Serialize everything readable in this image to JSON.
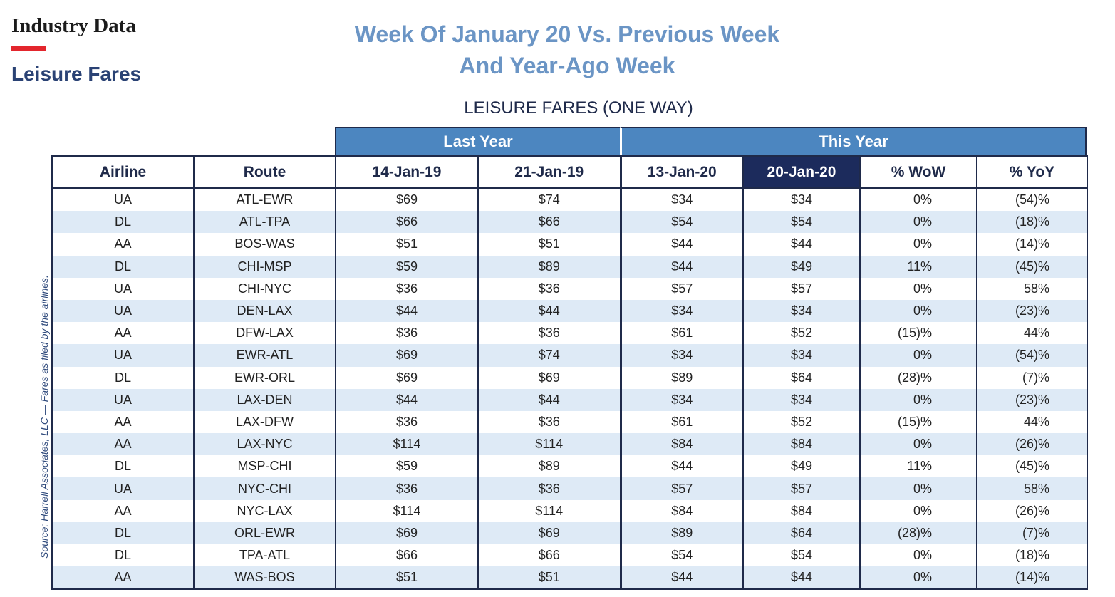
{
  "header": {
    "section": "Industry Data",
    "topic": "Leisure Fares",
    "headline_line1": "Week Of January 20 Vs. Previous Week",
    "headline_line2": "And Year-Ago Week",
    "accent_red": "#e3262d",
    "headline_color": "#6b95c5"
  },
  "table": {
    "title": "LEISURE FARES (ONE WAY)",
    "groups": {
      "last_year": "Last Year",
      "this_year": "This Year"
    },
    "group_color": "#4c86c0",
    "highlight_color": "#1c2b5c",
    "stripe_color": "#deeaf6",
    "columns": [
      "Airline",
      "Route",
      "14-Jan-19",
      "21-Jan-19",
      "13-Jan-20",
      "20-Jan-20",
      "% WoW",
      "% YoY"
    ],
    "rows": [
      [
        "UA",
        "ATL-EWR",
        "$69",
        "$74",
        "$34",
        "$34",
        "0%",
        "(54)%"
      ],
      [
        "DL",
        "ATL-TPA",
        "$66",
        "$66",
        "$54",
        "$54",
        "0%",
        "(18)%"
      ],
      [
        "AA",
        "BOS-WAS",
        "$51",
        "$51",
        "$44",
        "$44",
        "0%",
        "(14)%"
      ],
      [
        "DL",
        "CHI-MSP",
        "$59",
        "$89",
        "$44",
        "$49",
        "11%",
        "(45)%"
      ],
      [
        "UA",
        "CHI-NYC",
        "$36",
        "$36",
        "$57",
        "$57",
        "0%",
        "58%"
      ],
      [
        "UA",
        "DEN-LAX",
        "$44",
        "$44",
        "$34",
        "$34",
        "0%",
        "(23)%"
      ],
      [
        "AA",
        "DFW-LAX",
        "$36",
        "$36",
        "$61",
        "$52",
        "(15)%",
        "44%"
      ],
      [
        "UA",
        "EWR-ATL",
        "$69",
        "$74",
        "$34",
        "$34",
        "0%",
        "(54)%"
      ],
      [
        "DL",
        "EWR-ORL",
        "$69",
        "$69",
        "$89",
        "$64",
        "(28)%",
        "(7)%"
      ],
      [
        "UA",
        "LAX-DEN",
        "$44",
        "$44",
        "$34",
        "$34",
        "0%",
        "(23)%"
      ],
      [
        "AA",
        "LAX-DFW",
        "$36",
        "$36",
        "$61",
        "$52",
        "(15)%",
        "44%"
      ],
      [
        "AA",
        "LAX-NYC",
        "$114",
        "$114",
        "$84",
        "$84",
        "0%",
        "(26)%"
      ],
      [
        "DL",
        "MSP-CHI",
        "$59",
        "$89",
        "$44",
        "$49",
        "11%",
        "(45)%"
      ],
      [
        "UA",
        "NYC-CHI",
        "$36",
        "$36",
        "$57",
        "$57",
        "0%",
        "58%"
      ],
      [
        "AA",
        "NYC-LAX",
        "$114",
        "$114",
        "$84",
        "$84",
        "0%",
        "(26)%"
      ],
      [
        "DL",
        "ORL-EWR",
        "$69",
        "$69",
        "$89",
        "$64",
        "(28)%",
        "(7)%"
      ],
      [
        "DL",
        "TPA-ATL",
        "$66",
        "$66",
        "$54",
        "$54",
        "0%",
        "(18)%"
      ],
      [
        "AA",
        "WAS-BOS",
        "$51",
        "$51",
        "$44",
        "$44",
        "0%",
        "(14)%"
      ]
    ]
  },
  "source_note": "Source: Harrell Associates, LLC — Fares as filed by the airlines."
}
